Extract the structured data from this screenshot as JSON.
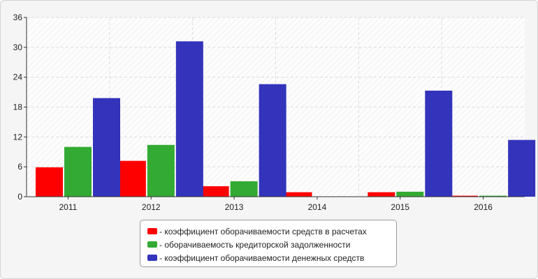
{
  "chart_data": {
    "type": "bar",
    "title": "",
    "xlabel": "",
    "ylabel": "",
    "categories": [
      "2011",
      "2012",
      "2013",
      "2014",
      "2015",
      "2016"
    ],
    "ylim": [
      0,
      36
    ],
    "yticks": [
      0,
      6,
      12,
      18,
      24,
      30,
      36
    ],
    "grid": true,
    "legend_position": "bottom",
    "series": [
      {
        "name": "- коэффициент оборачиваемости средств в расчетах",
        "color": "#ff0000",
        "values": [
          5.9,
          7.2,
          2.1,
          0.9,
          0.9,
          0.2
        ]
      },
      {
        "name": "- оборачиваемость кредиторской задолженности",
        "color": "#33aa33",
        "values": [
          10.0,
          10.4,
          3.1,
          0,
          1.0,
          0.2
        ]
      },
      {
        "name": "- коэффициент оборачиваемости денежных средств",
        "color": "#3333bb",
        "values": [
          19.8,
          31.2,
          22.6,
          0,
          21.3,
          11.4
        ]
      }
    ]
  }
}
